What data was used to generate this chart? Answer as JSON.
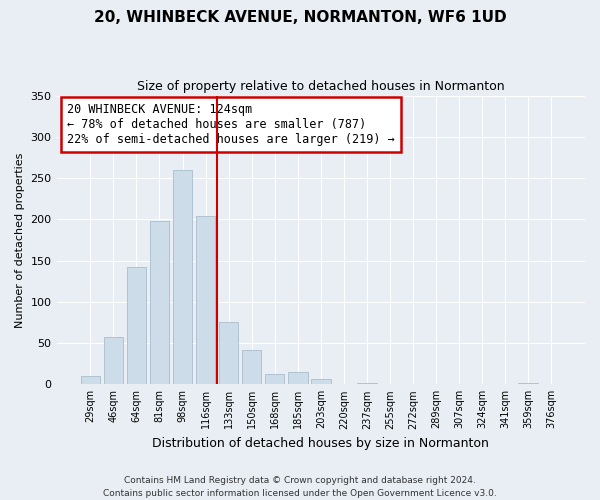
{
  "title": "20, WHINBECK AVENUE, NORMANTON, WF6 1UD",
  "subtitle": "Size of property relative to detached houses in Normanton",
  "xlabel": "Distribution of detached houses by size in Normanton",
  "ylabel": "Number of detached properties",
  "footer_line1": "Contains HM Land Registry data © Crown copyright and database right 2024.",
  "footer_line2": "Contains public sector information licensed under the Open Government Licence v3.0.",
  "bar_labels": [
    "29sqm",
    "46sqm",
    "64sqm",
    "81sqm",
    "98sqm",
    "116sqm",
    "133sqm",
    "150sqm",
    "168sqm",
    "185sqm",
    "203sqm",
    "220sqm",
    "237sqm",
    "255sqm",
    "272sqm",
    "289sqm",
    "307sqm",
    "324sqm",
    "341sqm",
    "359sqm",
    "376sqm"
  ],
  "bar_heights": [
    10,
    57,
    142,
    198,
    260,
    204,
    75,
    41,
    13,
    15,
    6,
    0,
    2,
    0,
    0,
    0,
    0,
    0,
    0,
    2,
    0
  ],
  "bar_color": "#ccdce8",
  "bar_edge_color": "#aabccc",
  "vline_x": 5.5,
  "vline_color": "#cc0000",
  "ylim": [
    0,
    350
  ],
  "yticks": [
    0,
    50,
    100,
    150,
    200,
    250,
    300,
    350
  ],
  "annotation_title": "20 WHINBECK AVENUE: 124sqm",
  "annotation_line1": "← 78% of detached houses are smaller (787)",
  "annotation_line2": "22% of semi-detached houses are larger (219) →",
  "annotation_box_color": "#ffffff",
  "annotation_box_edge": "#cc0000",
  "background_color": "#e8eef4",
  "grid_color": "#ffffff",
  "title_fontsize": 11,
  "subtitle_fontsize": 9,
  "ylabel_fontsize": 8,
  "xlabel_fontsize": 9,
  "tick_fontsize": 8,
  "xtick_fontsize": 7,
  "footer_fontsize": 6.5,
  "ann_fontsize": 8.5
}
